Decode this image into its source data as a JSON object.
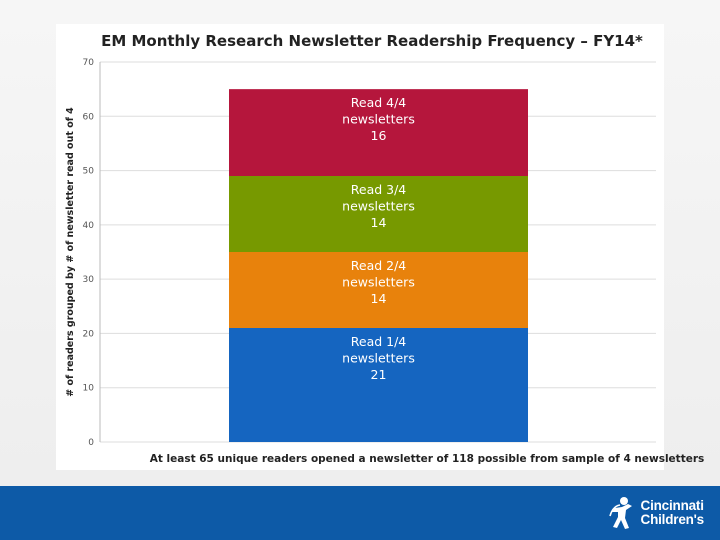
{
  "chart_data": {
    "type": "bar",
    "stacked": true,
    "title": "EM Monthly Research Newsletter Readership Frequency – FY14*",
    "ylabel": "# of readers grouped by # of newsletter read out of 4",
    "xlabel": "At least 65 unique readers opened a newsletter of 118 possible from sample of 4 newsletters",
    "ylim": [
      0,
      70
    ],
    "yticks": [
      0,
      10,
      20,
      30,
      40,
      50,
      60,
      70
    ],
    "grid": true,
    "segments": [
      {
        "name": "Read 1/4 newsletters",
        "lines": [
          "Read 1/4",
          "newsletters",
          "21"
        ],
        "value": 21,
        "color": "#1565c0"
      },
      {
        "name": "Read 2/4 newsletters",
        "lines": [
          "Read 2/4",
          "newsletters",
          "14"
        ],
        "value": 14,
        "color": "#e8820c"
      },
      {
        "name": "Read 3/4 newsletters",
        "lines": [
          "Read 3/4",
          "newsletters",
          "14"
        ],
        "value": 14,
        "color": "#779900"
      },
      {
        "name": "Read 4/4 newsletters",
        "lines": [
          "Read 4/4",
          "newsletters",
          "16"
        ],
        "value": 16,
        "color": "#b5163c"
      }
    ]
  },
  "footer": {
    "band_color": "#0d5aa7",
    "logo": {
      "line1": "Cincinnati",
      "line2": "Children's"
    }
  }
}
